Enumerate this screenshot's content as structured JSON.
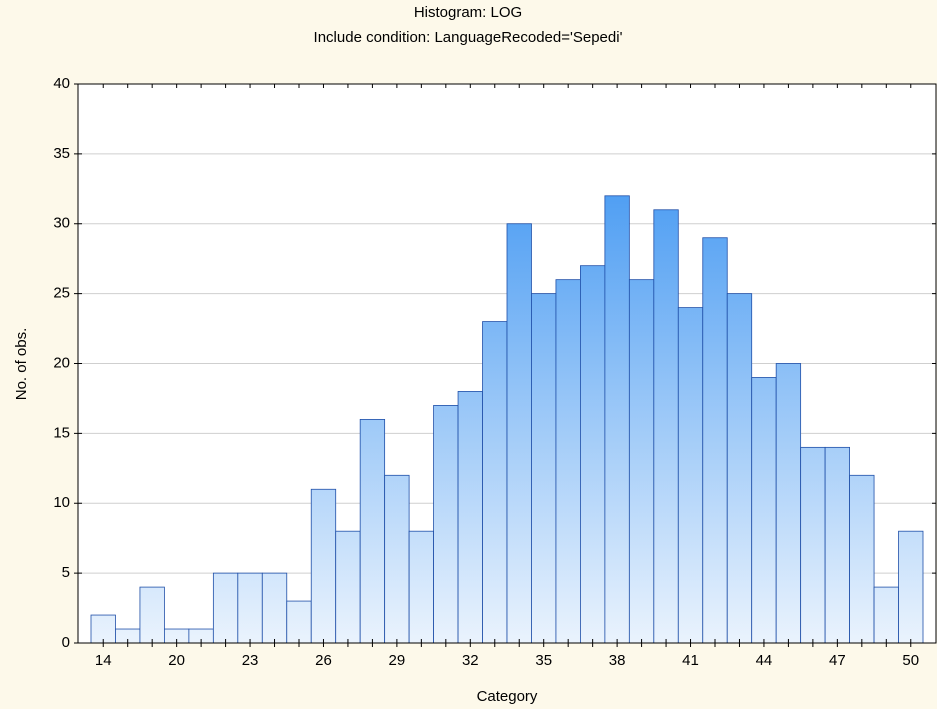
{
  "chart_data": {
    "type": "bar",
    "title": "Histogram: LOG",
    "subtitle": "Include condition: LanguageRecoded='Sepedi'",
    "x_label": "Category",
    "y_label": "No. of obs.",
    "categories": [
      "14",
      null,
      null,
      "20",
      null,
      null,
      "23",
      null,
      null,
      "26",
      null,
      null,
      "29",
      null,
      null,
      "32",
      null,
      null,
      "35",
      null,
      null,
      "38",
      null,
      null,
      "41",
      null,
      null,
      "44",
      null,
      null,
      "47",
      null,
      null,
      "50"
    ],
    "values": [
      2,
      1,
      4,
      1,
      1,
      5,
      5,
      5,
      3,
      11,
      8,
      16,
      12,
      8,
      17,
      18,
      23,
      30,
      25,
      26,
      27,
      32,
      26,
      31,
      24,
      29,
      25,
      19,
      20,
      14,
      14,
      12,
      4,
      8
    ],
    "color": "#2a8af0",
    "ylim": [
      0,
      40
    ],
    "yticks": [
      0,
      5,
      10,
      15,
      20,
      25,
      30,
      35,
      40
    ],
    "grid": true
  }
}
